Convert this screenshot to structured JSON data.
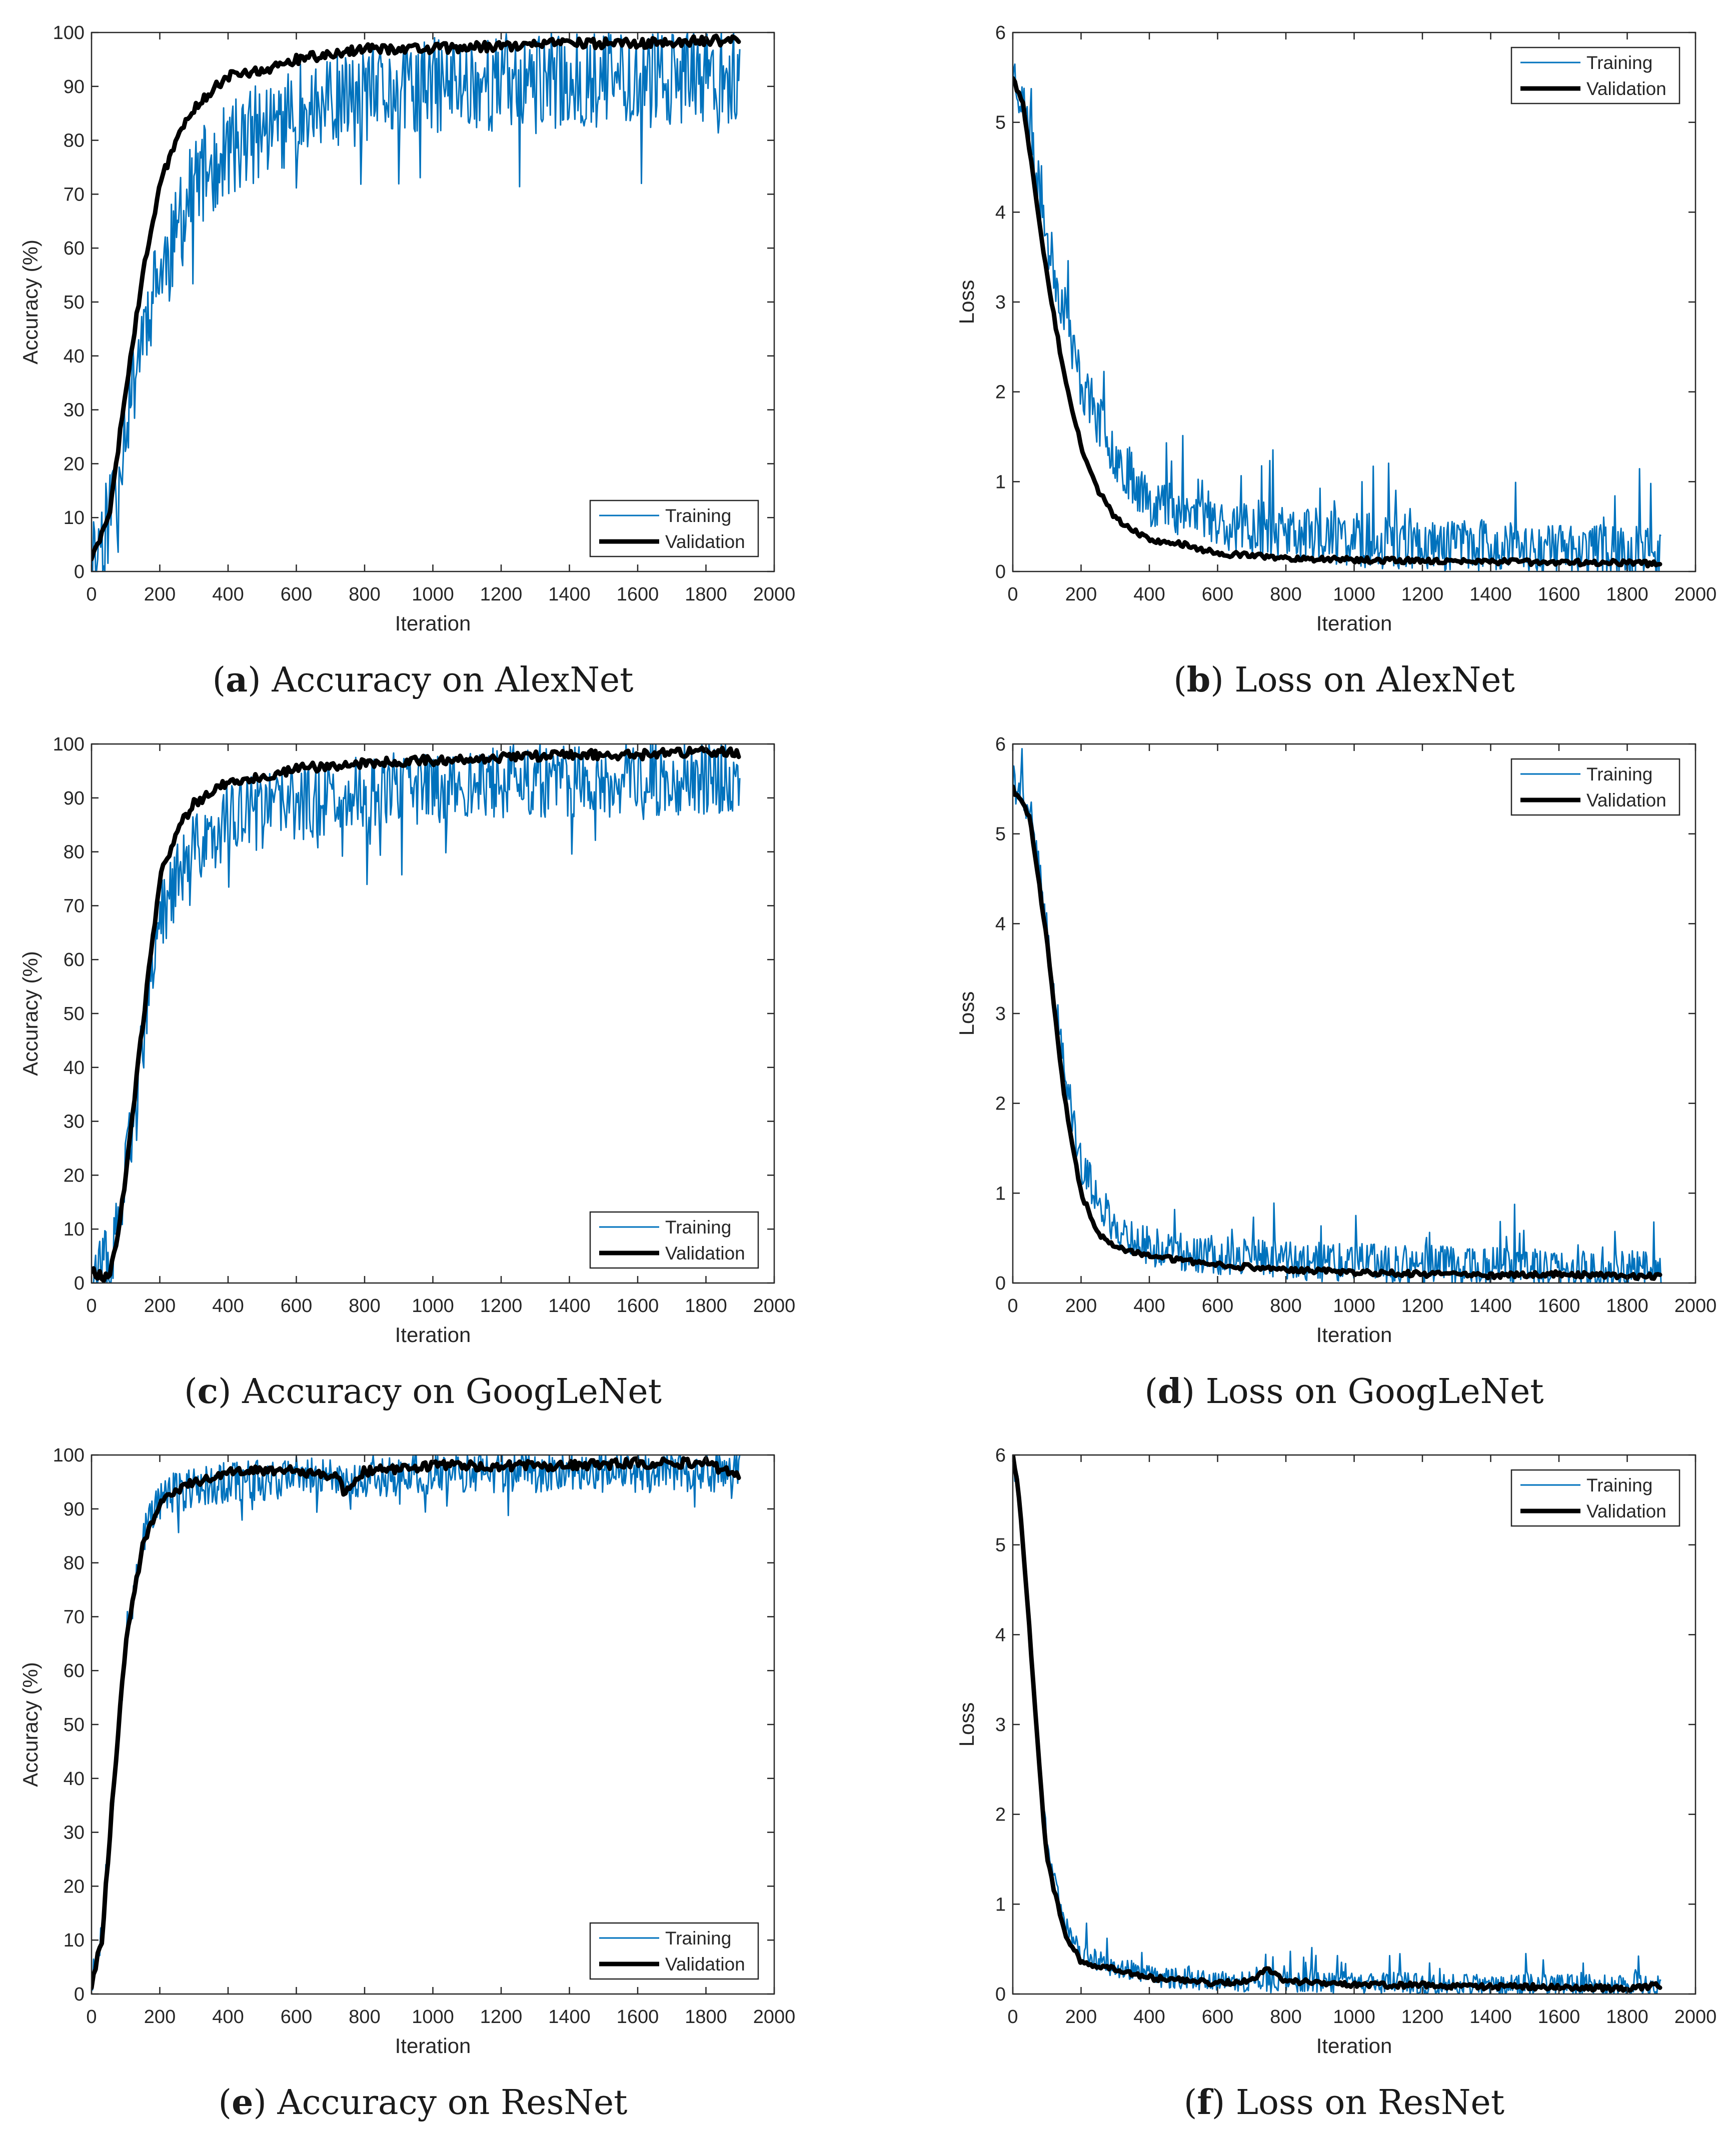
{
  "chart_data": [
    {
      "id": "a",
      "type": "line",
      "kind": "accuracy",
      "seed": 11,
      "caption_letter": "a",
      "caption_text": " Accuracy on AlexNet",
      "xlabel": "Iteration",
      "ylabel": "Accuracy (%)",
      "xlim": [
        0,
        2000
      ],
      "ylim": [
        0,
        100
      ],
      "xticks": [
        0,
        200,
        400,
        600,
        800,
        1000,
        1200,
        1400,
        1600,
        1800,
        2000
      ],
      "yticks": [
        0,
        10,
        20,
        30,
        40,
        50,
        60,
        70,
        80,
        90,
        100
      ],
      "legend": [
        "Training",
        "Validation"
      ],
      "legend_position": "bottom-right",
      "series": [
        {
          "name": "Training",
          "color": "#0072BD",
          "x": [
            0,
            50,
            100,
            150,
            200,
            250,
            300,
            400,
            500,
            600,
            800,
            1000,
            1200,
            1400,
            1600,
            1800,
            1900
          ],
          "values": [
            2,
            10,
            28,
            45,
            55,
            62,
            72,
            78,
            82,
            85,
            88,
            90,
            91,
            91,
            92,
            92,
            93
          ],
          "noise": 9
        },
        {
          "name": "Validation",
          "color": "#000000",
          "x": [
            0,
            50,
            100,
            150,
            200,
            250,
            300,
            350,
            400,
            500,
            600,
            700,
            800,
            1000,
            1200,
            1400,
            1600,
            1800,
            1900
          ],
          "values": [
            2,
            10,
            33,
            55,
            72,
            80,
            86,
            89,
            92,
            93,
            95,
            96,
            97,
            97,
            97.5,
            98,
            98,
            98.5,
            98.5
          ]
        }
      ]
    },
    {
      "id": "b",
      "type": "line",
      "kind": "loss",
      "seed": 23,
      "caption_letter": "b",
      "caption_text": " Loss on AlexNet",
      "xlabel": "Iteration",
      "ylabel": "Loss",
      "xlim": [
        0,
        2000
      ],
      "ylim": [
        0,
        6
      ],
      "xticks": [
        0,
        200,
        400,
        600,
        800,
        1000,
        1200,
        1400,
        1600,
        1800,
        2000
      ],
      "yticks": [
        0,
        1,
        2,
        3,
        4,
        5,
        6
      ],
      "legend": [
        "Training",
        "Validation"
      ],
      "legend_position": "top-right",
      "series": [
        {
          "name": "Training",
          "color": "#0072BD",
          "x": [
            0,
            30,
            60,
            100,
            150,
            200,
            300,
            400,
            600,
            800,
            1000,
            1200,
            1400,
            1600,
            1800,
            1900
          ],
          "values": [
            5.6,
            5.2,
            4.6,
            3.7,
            2.9,
            2.1,
            1.3,
            0.8,
            0.55,
            0.42,
            0.35,
            0.3,
            0.28,
            0.25,
            0.22,
            0.2
          ],
          "noise": 0.3
        },
        {
          "name": "Validation",
          "color": "#000000",
          "x": [
            0,
            30,
            60,
            100,
            150,
            200,
            250,
            300,
            400,
            500,
            600,
            800,
            1000,
            1200,
            1400,
            1600,
            1800,
            1900
          ],
          "values": [
            5.5,
            5.2,
            4.4,
            3.3,
            2.2,
            1.4,
            0.9,
            0.6,
            0.35,
            0.3,
            0.2,
            0.15,
            0.13,
            0.12,
            0.11,
            0.1,
            0.1,
            0.08
          ]
        }
      ]
    },
    {
      "id": "c",
      "type": "line",
      "kind": "accuracy",
      "seed": 37,
      "caption_letter": "c",
      "caption_text": " Accuracy on GoogLeNet",
      "xlabel": "Iteration",
      "ylabel": "Accuracy (%)",
      "xlim": [
        0,
        2000
      ],
      "ylim": [
        0,
        100
      ],
      "xticks": [
        0,
        200,
        400,
        600,
        800,
        1000,
        1200,
        1400,
        1600,
        1800,
        2000
      ],
      "yticks": [
        0,
        10,
        20,
        30,
        40,
        50,
        60,
        70,
        80,
        90,
        100
      ],
      "legend": [
        "Training",
        "Validation"
      ],
      "legend_position": "bottom-right",
      "series": [
        {
          "name": "Training",
          "color": "#0072BD",
          "x": [
            0,
            50,
            80,
            100,
            150,
            200,
            250,
            300,
            400,
            600,
            800,
            1000,
            1200,
            1400,
            1600,
            1800,
            1900
          ],
          "values": [
            2,
            3,
            10,
            20,
            45,
            68,
            75,
            80,
            86,
            89,
            91,
            92,
            93,
            93,
            93.5,
            94,
            94
          ],
          "noise": 7
        },
        {
          "name": "Validation",
          "color": "#000000",
          "x": [
            0,
            50,
            80,
            100,
            150,
            200,
            250,
            300,
            400,
            500,
            600,
            800,
            1000,
            1200,
            1400,
            1600,
            1800,
            1900
          ],
          "values": [
            2,
            1,
            10,
            20,
            48,
            75,
            84,
            89,
            93,
            94,
            95.5,
            96.5,
            97,
            97.5,
            98,
            98,
            98.5,
            98.5
          ]
        }
      ]
    },
    {
      "id": "d",
      "type": "line",
      "kind": "loss",
      "seed": 41,
      "caption_letter": "d",
      "caption_text": " Loss on GoogLeNet",
      "xlabel": "Iteration",
      "ylabel": "Loss",
      "xlim": [
        0,
        2000
      ],
      "ylim": [
        0,
        6
      ],
      "xticks": [
        0,
        200,
        400,
        600,
        800,
        1000,
        1200,
        1400,
        1600,
        1800,
        2000
      ],
      "yticks": [
        0,
        1,
        2,
        3,
        4,
        5,
        6
      ],
      "legend": [
        "Training",
        "Validation"
      ],
      "legend_position": "top-right",
      "series": [
        {
          "name": "Training",
          "color": "#0072BD",
          "x": [
            0,
            50,
            100,
            150,
            200,
            300,
            400,
            600,
            800,
            1000,
            1200,
            1400,
            1600,
            1800,
            1900
          ],
          "values": [
            5.6,
            5.3,
            3.9,
            2.4,
            1.3,
            0.6,
            0.4,
            0.3,
            0.25,
            0.22,
            0.2,
            0.18,
            0.15,
            0.15,
            0.14
          ],
          "noise": 0.22
        },
        {
          "name": "Validation",
          "color": "#000000",
          "x": [
            0,
            50,
            100,
            150,
            200,
            250,
            300,
            400,
            500,
            600,
            800,
            1000,
            1200,
            1400,
            1600,
            1800,
            1900
          ],
          "values": [
            5.5,
            5.2,
            3.8,
            2.1,
            1.0,
            0.55,
            0.4,
            0.3,
            0.25,
            0.2,
            0.15,
            0.12,
            0.1,
            0.08,
            0.1,
            0.08,
            0.07
          ]
        }
      ]
    },
    {
      "id": "e",
      "type": "line",
      "kind": "accuracy",
      "seed": 53,
      "caption_letter": "e",
      "caption_text": " Accuracy on ResNet",
      "xlabel": "Iteration",
      "ylabel": "Accuracy (%)",
      "xlim": [
        0,
        2000
      ],
      "ylim": [
        0,
        100
      ],
      "xticks": [
        0,
        200,
        400,
        600,
        800,
        1000,
        1200,
        1400,
        1600,
        1800,
        2000
      ],
      "yticks": [
        0,
        10,
        20,
        30,
        40,
        50,
        60,
        70,
        80,
        90,
        100
      ],
      "legend": [
        "Training",
        "Validation"
      ],
      "legend_position": "bottom-right",
      "series": [
        {
          "name": "Training",
          "color": "#0072BD",
          "x": [
            0,
            30,
            60,
            100,
            150,
            200,
            300,
            400,
            600,
            800,
            1000,
            1200,
            1400,
            1600,
            1800,
            1900
          ],
          "values": [
            3,
            12,
            35,
            65,
            85,
            92,
            94,
            95,
            96,
            96,
            96.5,
            97,
            97,
            97,
            97,
            97
          ],
          "noise": 4
        },
        {
          "name": "Validation",
          "color": "#000000",
          "x": [
            0,
            30,
            60,
            100,
            150,
            200,
            250,
            300,
            400,
            600,
            720,
            740,
            800,
            1000,
            1200,
            1400,
            1600,
            1800,
            1900
          ],
          "values": [
            2,
            10,
            35,
            65,
            83,
            91,
            93,
            95,
            97,
            97,
            96,
            93,
            97,
            98,
            98,
            98,
            98.5,
            98.5,
            96
          ]
        }
      ]
    },
    {
      "id": "f",
      "type": "line",
      "kind": "loss",
      "seed": 67,
      "caption_letter": "f",
      "caption_text": " Loss on ResNet",
      "xlabel": "Iteration",
      "ylabel": "Loss",
      "xlim": [
        0,
        2000
      ],
      "ylim": [
        0,
        6
      ],
      "xticks": [
        0,
        200,
        400,
        600,
        800,
        1000,
        1200,
        1400,
        1600,
        1800,
        2000
      ],
      "yticks": [
        0,
        1,
        2,
        3,
        4,
        5,
        6
      ],
      "legend": [
        "Training",
        "Validation"
      ],
      "legend_position": "top-right",
      "series": [
        {
          "name": "Training",
          "color": "#0072BD",
          "x": [
            0,
            20,
            50,
            80,
            100,
            150,
            200,
            300,
            400,
            600,
            800,
            1000,
            1200,
            1400,
            1600,
            1800,
            1900
          ],
          "values": [
            6,
            5.4,
            4.0,
            2.5,
            1.6,
            0.8,
            0.45,
            0.3,
            0.2,
            0.15,
            0.13,
            0.12,
            0.12,
            0.1,
            0.1,
            0.1,
            0.1
          ],
          "noise": 0.12
        },
        {
          "name": "Validation",
          "color": "#000000",
          "x": [
            0,
            20,
            50,
            80,
            100,
            150,
            200,
            250,
            300,
            400,
            600,
            700,
            740,
            800,
            1000,
            1200,
            1400,
            1600,
            1800,
            1900
          ],
          "values": [
            6,
            5.5,
            4.0,
            2.4,
            1.5,
            0.7,
            0.35,
            0.3,
            0.28,
            0.18,
            0.12,
            0.15,
            0.28,
            0.15,
            0.1,
            0.1,
            0.08,
            0.08,
            0.06,
            0.1
          ]
        }
      ]
    }
  ]
}
